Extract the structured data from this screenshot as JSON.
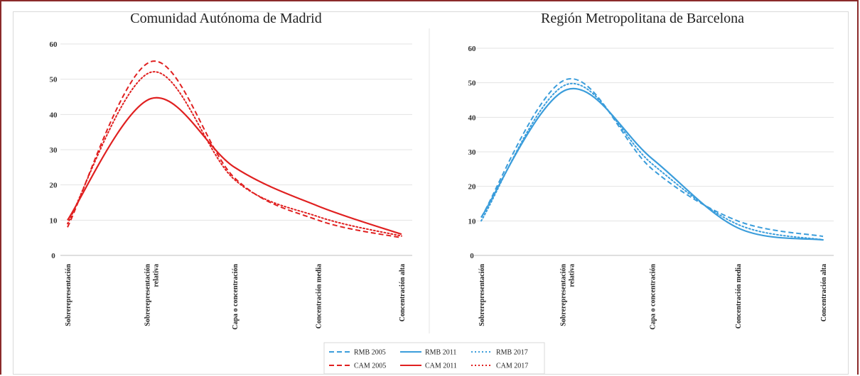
{
  "chart_data": [
    {
      "type": "line",
      "title": "Comunidad Autónoma de Madrid",
      "categories": [
        "Sobrerepresentación",
        "Sobrerepresentación relativa",
        "Capa o concentración",
        "Concentración media",
        "Concentración alta"
      ],
      "ylim": [
        0,
        60
      ],
      "yticks": [
        "0",
        "10",
        "20",
        "30",
        "40",
        "50",
        "60"
      ],
      "grid": true,
      "series": [
        {
          "name": "CAM 2005",
          "values": [
            8,
            55,
            22,
            10,
            5
          ],
          "color": "#e02020",
          "dash": "dashed"
        },
        {
          "name": "CAM 2011",
          "values": [
            10,
            44.5,
            25,
            14,
            6
          ],
          "color": "#e02020",
          "dash": "solid"
        },
        {
          "name": "CAM 2017",
          "values": [
            9,
            52,
            21.5,
            11,
            5.5
          ],
          "color": "#e02020",
          "dash": "dotted"
        }
      ]
    },
    {
      "type": "line",
      "title": "Región Metropolitana de Barcelona",
      "categories": [
        "Sobrerepresentación",
        "Sobrerepresentación relativa",
        "Capa o concentración",
        "Concentración media",
        "Concentración alta"
      ],
      "ylim": [
        0,
        60
      ],
      "yticks": [
        "0",
        "10",
        "20",
        "30",
        "40",
        "50",
        "60"
      ],
      "grid": true,
      "series": [
        {
          "name": "RMB 2005",
          "values": [
            11,
            51,
            25,
            10,
            5.5
          ],
          "color": "#3b9ddb",
          "dash": "dashed"
        },
        {
          "name": "RMB 2011",
          "values": [
            11,
            48,
            28,
            8,
            4.5
          ],
          "color": "#3b9ddb",
          "dash": "solid"
        },
        {
          "name": "RMB 2017",
          "values": [
            10,
            49.5,
            26.5,
            9,
            4.5
          ],
          "color": "#3b9ddb",
          "dash": "dotted"
        }
      ]
    }
  ],
  "legend": {
    "placement": "bottom-center",
    "rows": [
      [
        "RMB 2005",
        "RMB 2011",
        "RMB 2017"
      ],
      [
        "CAM 2005",
        "CAM 2011",
        "CAM 2017"
      ]
    ]
  }
}
